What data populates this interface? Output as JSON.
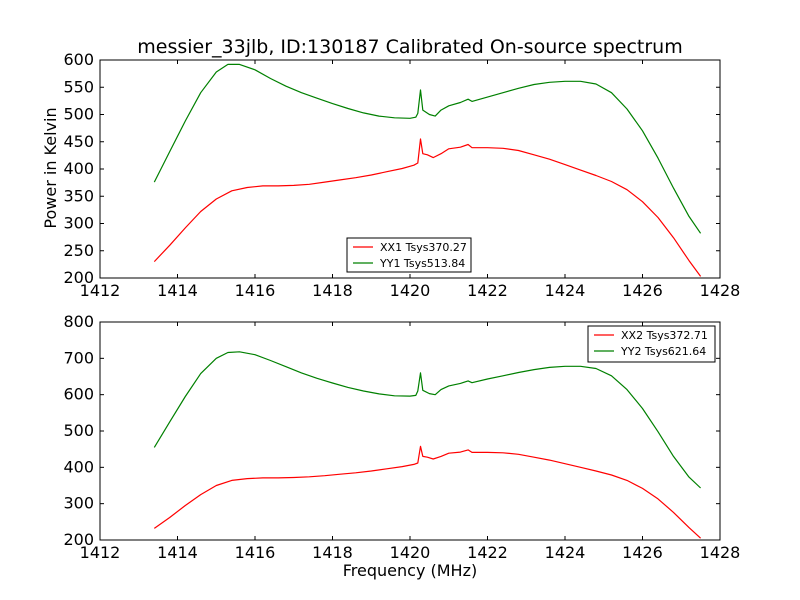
{
  "chart_data": [
    {
      "type": "line",
      "title": "messier_33jlb, ID:130187 Calibrated On-source spectrum",
      "xlabel": "",
      "ylabel": "Power in Kelvin",
      "xlim": [
        1412,
        1428
      ],
      "ylim": [
        200,
        600
      ],
      "xticks": [
        1412,
        1414,
        1416,
        1418,
        1420,
        1422,
        1424,
        1426,
        1428
      ],
      "yticks": [
        200,
        250,
        300,
        350,
        400,
        450,
        500,
        550,
        600
      ],
      "legend_position": "bottom-center",
      "series": [
        {
          "name": "XX1 Tsys370.27",
          "color": "#ff0000",
          "points": [
            [
              1413.4,
              230
            ],
            [
              1413.8,
              260
            ],
            [
              1414.2,
              292
            ],
            [
              1414.6,
              322
            ],
            [
              1415.0,
              345
            ],
            [
              1415.4,
              360
            ],
            [
              1415.8,
              366
            ],
            [
              1416.2,
              369
            ],
            [
              1416.6,
              369
            ],
            [
              1417.0,
              370
            ],
            [
              1417.4,
              372
            ],
            [
              1417.8,
              376
            ],
            [
              1418.2,
              380
            ],
            [
              1418.6,
              384
            ],
            [
              1419.0,
              389
            ],
            [
              1419.4,
              395
            ],
            [
              1419.8,
              401
            ],
            [
              1420.1,
              407
            ],
            [
              1420.2,
              411
            ],
            [
              1420.27,
              455
            ],
            [
              1420.33,
              428
            ],
            [
              1420.45,
              426
            ],
            [
              1420.6,
              421
            ],
            [
              1420.8,
              428
            ],
            [
              1421.0,
              437
            ],
            [
              1421.3,
              440
            ],
            [
              1421.5,
              445
            ],
            [
              1421.6,
              439
            ],
            [
              1422.0,
              439
            ],
            [
              1422.4,
              438
            ],
            [
              1422.8,
              434
            ],
            [
              1423.2,
              426
            ],
            [
              1423.6,
              418
            ],
            [
              1424.0,
              408
            ],
            [
              1424.4,
              398
            ],
            [
              1424.8,
              388
            ],
            [
              1425.2,
              377
            ],
            [
              1425.6,
              362
            ],
            [
              1426.0,
              340
            ],
            [
              1426.4,
              311
            ],
            [
              1426.8,
              274
            ],
            [
              1427.2,
              232
            ],
            [
              1427.5,
              203
            ]
          ]
        },
        {
          "name": "YY1 Tsys513.84",
          "color": "#008000",
          "points": [
            [
              1413.4,
              376
            ],
            [
              1413.8,
              432
            ],
            [
              1414.2,
              488
            ],
            [
              1414.6,
              540
            ],
            [
              1415.0,
              578
            ],
            [
              1415.3,
              592
            ],
            [
              1415.6,
              592
            ],
            [
              1416.0,
              582
            ],
            [
              1416.4,
              566
            ],
            [
              1416.8,
              552
            ],
            [
              1417.2,
              540
            ],
            [
              1417.6,
              530
            ],
            [
              1418.0,
              520
            ],
            [
              1418.4,
              511
            ],
            [
              1418.8,
              503
            ],
            [
              1419.2,
              497
            ],
            [
              1419.6,
              494
            ],
            [
              1420.0,
              493
            ],
            [
              1420.15,
              495
            ],
            [
              1420.2,
              502
            ],
            [
              1420.27,
              545
            ],
            [
              1420.33,
              508
            ],
            [
              1420.5,
              500
            ],
            [
              1420.65,
              497
            ],
            [
              1420.8,
              508
            ],
            [
              1421.0,
              516
            ],
            [
              1421.3,
              522
            ],
            [
              1421.5,
              528
            ],
            [
              1421.6,
              524
            ],
            [
              1422.0,
              532
            ],
            [
              1422.4,
              540
            ],
            [
              1422.8,
              548
            ],
            [
              1423.2,
              555
            ],
            [
              1423.6,
              559
            ],
            [
              1424.0,
              561
            ],
            [
              1424.4,
              561
            ],
            [
              1424.8,
              556
            ],
            [
              1425.2,
              540
            ],
            [
              1425.6,
              510
            ],
            [
              1426.0,
              470
            ],
            [
              1426.4,
              420
            ],
            [
              1426.8,
              365
            ],
            [
              1427.2,
              313
            ],
            [
              1427.5,
              282
            ]
          ]
        }
      ]
    },
    {
      "type": "line",
      "title": "",
      "xlabel": "Frequency (MHz)",
      "ylabel": "",
      "xlim": [
        1412,
        1428
      ],
      "ylim": [
        200,
        800
      ],
      "xticks": [
        1412,
        1414,
        1416,
        1418,
        1420,
        1422,
        1424,
        1426,
        1428
      ],
      "yticks": [
        200,
        300,
        400,
        500,
        600,
        700,
        800
      ],
      "legend_position": "top-right",
      "series": [
        {
          "name": "XX2 Tsys372.71",
          "color": "#ff0000",
          "points": [
            [
              1413.4,
              232
            ],
            [
              1413.8,
              262
            ],
            [
              1414.2,
              295
            ],
            [
              1414.6,
              325
            ],
            [
              1415.0,
              350
            ],
            [
              1415.4,
              364
            ],
            [
              1415.8,
              369
            ],
            [
              1416.2,
              371
            ],
            [
              1416.6,
              371
            ],
            [
              1417.0,
              372
            ],
            [
              1417.4,
              374
            ],
            [
              1417.8,
              377
            ],
            [
              1418.2,
              381
            ],
            [
              1418.6,
              385
            ],
            [
              1419.0,
              390
            ],
            [
              1419.4,
              396
            ],
            [
              1419.8,
              402
            ],
            [
              1420.1,
              408
            ],
            [
              1420.2,
              412
            ],
            [
              1420.27,
              458
            ],
            [
              1420.33,
              430
            ],
            [
              1420.45,
              428
            ],
            [
              1420.6,
              423
            ],
            [
              1420.8,
              430
            ],
            [
              1421.0,
              439
            ],
            [
              1421.3,
              442
            ],
            [
              1421.5,
              448
            ],
            [
              1421.6,
              441
            ],
            [
              1422.0,
              441
            ],
            [
              1422.4,
              440
            ],
            [
              1422.8,
              436
            ],
            [
              1423.2,
              428
            ],
            [
              1423.6,
              420
            ],
            [
              1424.0,
              410
            ],
            [
              1424.4,
              400
            ],
            [
              1424.8,
              390
            ],
            [
              1425.2,
              379
            ],
            [
              1425.6,
              364
            ],
            [
              1426.0,
              342
            ],
            [
              1426.4,
              313
            ],
            [
              1426.8,
              276
            ],
            [
              1427.2,
              234
            ],
            [
              1427.5,
              205
            ]
          ]
        },
        {
          "name": "YY2 Tsys621.64",
          "color": "#008000",
          "points": [
            [
              1413.4,
              455
            ],
            [
              1413.8,
              525
            ],
            [
              1414.2,
              595
            ],
            [
              1414.6,
              658
            ],
            [
              1415.0,
              700
            ],
            [
              1415.3,
              716
            ],
            [
              1415.6,
              718
            ],
            [
              1416.0,
              710
            ],
            [
              1416.4,
              694
            ],
            [
              1416.8,
              677
            ],
            [
              1417.2,
              660
            ],
            [
              1417.6,
              645
            ],
            [
              1418.0,
              632
            ],
            [
              1418.4,
              620
            ],
            [
              1418.8,
              610
            ],
            [
              1419.2,
              602
            ],
            [
              1419.6,
              597
            ],
            [
              1420.0,
              596
            ],
            [
              1420.15,
              598
            ],
            [
              1420.2,
              610
            ],
            [
              1420.27,
              660
            ],
            [
              1420.33,
              612
            ],
            [
              1420.5,
              603
            ],
            [
              1420.65,
              600
            ],
            [
              1420.8,
              614
            ],
            [
              1421.0,
              624
            ],
            [
              1421.3,
              631
            ],
            [
              1421.5,
              638
            ],
            [
              1421.6,
              633
            ],
            [
              1422.0,
              643
            ],
            [
              1422.4,
              652
            ],
            [
              1422.8,
              661
            ],
            [
              1423.2,
              669
            ],
            [
              1423.6,
              675
            ],
            [
              1424.0,
              678
            ],
            [
              1424.4,
              678
            ],
            [
              1424.8,
              672
            ],
            [
              1425.2,
              652
            ],
            [
              1425.6,
              614
            ],
            [
              1426.0,
              562
            ],
            [
              1426.4,
              498
            ],
            [
              1426.8,
              430
            ],
            [
              1427.2,
              373
            ],
            [
              1427.5,
              343
            ]
          ]
        }
      ]
    }
  ]
}
